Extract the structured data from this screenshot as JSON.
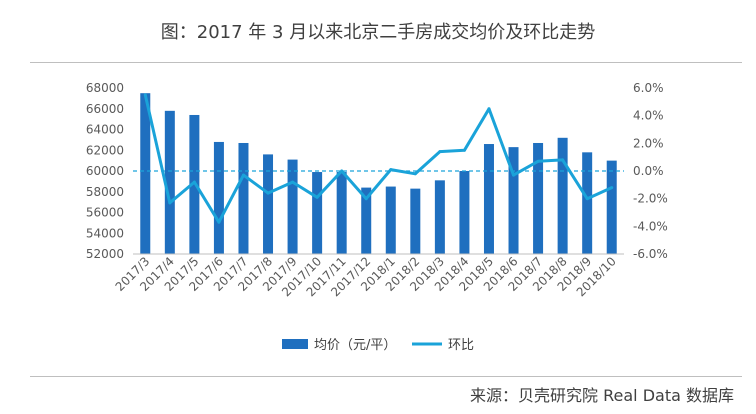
{
  "chart_data": {
    "type": "bar",
    "title": "图：2017 年 3 月以来北京二手房成交均价及环比走势",
    "categories": [
      "2017/3",
      "2017/4",
      "2017/5",
      "2017/6",
      "2017/7",
      "2017/8",
      "2017/9",
      "2017/10",
      "2017/11",
      "2017/12",
      "2018/1",
      "2018/2",
      "2018/3",
      "2018/4",
      "2018/5",
      "2018/6",
      "2018/7",
      "2018/8",
      "2018/9",
      "2018/10"
    ],
    "series": [
      {
        "name": "均价（元/平）",
        "type": "bar",
        "axis": "left",
        "color": "#1f6fbf",
        "values": [
          67500,
          65800,
          65400,
          62800,
          62700,
          61600,
          61100,
          59900,
          59900,
          58400,
          58500,
          58300,
          59100,
          60000,
          62600,
          62300,
          62700,
          63200,
          61800,
          61000
        ]
      },
      {
        "name": "环比",
        "type": "line",
        "axis": "right",
        "color": "#1aa3d9",
        "values": [
          5.5,
          -2.3,
          -0.8,
          -3.7,
          -0.3,
          -1.6,
          -0.8,
          -1.9,
          0.0,
          -2.0,
          0.1,
          -0.2,
          1.4,
          1.5,
          4.5,
          -0.3,
          0.7,
          0.8,
          -2.0,
          -1.2
        ]
      }
    ],
    "y_left": {
      "min": 52000,
      "max": 68000,
      "step": 2000
    },
    "y_right": {
      "min": -6.0,
      "max": 6.0,
      "step": 2.0,
      "format": "percent"
    },
    "y_left_ticks": [
      "52000",
      "54000",
      "56000",
      "58000",
      "60000",
      "62000",
      "64000",
      "66000",
      "68000"
    ],
    "y_right_ticks": [
      "-6.0%",
      "-4.0%",
      "-2.0%",
      "0.0%",
      "2.0%",
      "4.0%",
      "6.0%"
    ],
    "reference_line": {
      "axis": "right",
      "value": 0.0,
      "style": "dashed",
      "color": "#1aa3d9"
    },
    "legend": {
      "position": "bottom"
    }
  },
  "source": "来源：贝壳研究院 Real Data 数据库"
}
